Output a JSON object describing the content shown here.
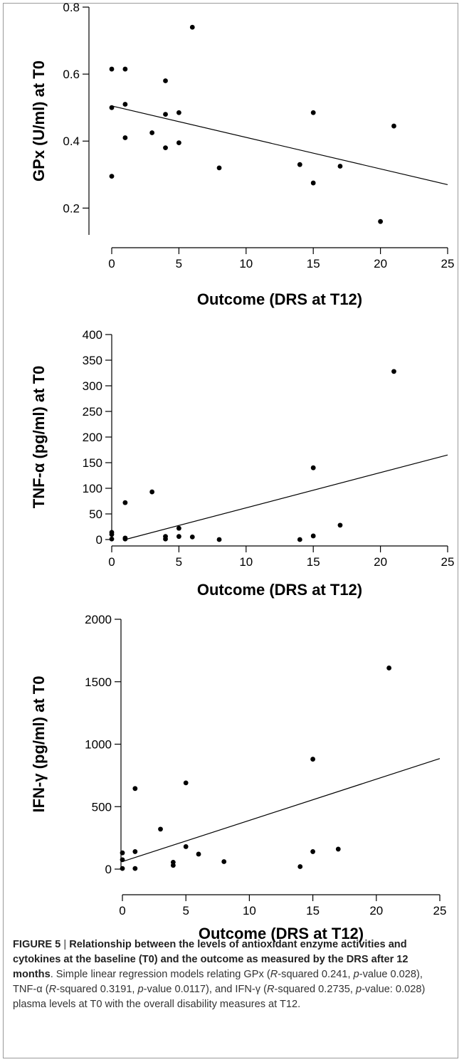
{
  "chart_data": [
    {
      "type": "scatter",
      "xlabel": "Outcome (DRS at T12)",
      "ylabel": "GPx (U/ml) at T0",
      "xlim": [
        0,
        25
      ],
      "ylim": [
        0.12,
        0.8
      ],
      "xticks": [
        0,
        5,
        10,
        15,
        20,
        25
      ],
      "yticks": [
        0.2,
        0.4,
        0.6,
        0.8
      ],
      "ytick_labels": [
        "0.2",
        "0.4",
        "0.6",
        "0.8"
      ],
      "points": [
        {
          "x": 0,
          "y": 0.615
        },
        {
          "x": 0,
          "y": 0.5
        },
        {
          "x": 0,
          "y": 0.295
        },
        {
          "x": 1,
          "y": 0.615
        },
        {
          "x": 1,
          "y": 0.51
        },
        {
          "x": 1,
          "y": 0.41
        },
        {
          "x": 3,
          "y": 0.425
        },
        {
          "x": 4,
          "y": 0.58
        },
        {
          "x": 4,
          "y": 0.48
        },
        {
          "x": 4,
          "y": 0.38
        },
        {
          "x": 5,
          "y": 0.485
        },
        {
          "x": 5,
          "y": 0.395
        },
        {
          "x": 6,
          "y": 0.74
        },
        {
          "x": 8,
          "y": 0.32
        },
        {
          "x": 14,
          "y": 0.33
        },
        {
          "x": 15,
          "y": 0.485
        },
        {
          "x": 15,
          "y": 0.275
        },
        {
          "x": 17,
          "y": 0.325
        },
        {
          "x": 20,
          "y": 0.16
        },
        {
          "x": 21,
          "y": 0.445
        }
      ],
      "regression": {
        "x": [
          0,
          25
        ],
        "y": [
          0.505,
          0.27
        ]
      }
    },
    {
      "type": "scatter",
      "xlabel": "Outcome (DRS at T12)",
      "ylabel": "TNF-α (pg/ml) at T0",
      "xlim": [
        0,
        25
      ],
      "ylim": [
        0,
        400
      ],
      "xticks": [
        0,
        5,
        10,
        15,
        20,
        25
      ],
      "yticks": [
        0,
        50,
        100,
        150,
        200,
        250,
        300,
        350,
        400
      ],
      "ytick_labels": [
        "0",
        "50",
        "100",
        "150",
        "200",
        "250",
        "300",
        "350",
        "400"
      ],
      "points": [
        {
          "x": 0,
          "y": 14
        },
        {
          "x": 0,
          "y": 10
        },
        {
          "x": 0,
          "y": 1
        },
        {
          "x": 1,
          "y": 72
        },
        {
          "x": 1,
          "y": 3
        },
        {
          "x": 1,
          "y": 1
        },
        {
          "x": 3,
          "y": 93
        },
        {
          "x": 4,
          "y": 6
        },
        {
          "x": 4,
          "y": 1
        },
        {
          "x": 5,
          "y": 22
        },
        {
          "x": 5,
          "y": 6
        },
        {
          "x": 6,
          "y": 5
        },
        {
          "x": 8,
          "y": 0
        },
        {
          "x": 14,
          "y": 0
        },
        {
          "x": 15,
          "y": 140
        },
        {
          "x": 15,
          "y": 7
        },
        {
          "x": 17,
          "y": 28
        },
        {
          "x": 21,
          "y": 328
        }
      ],
      "regression": {
        "x": [
          1,
          25
        ],
        "y": [
          0,
          165
        ]
      }
    },
    {
      "type": "scatter",
      "xlabel": "Outcome (DRS at T12)",
      "ylabel": "IFN-γ (pg/ml) at T0",
      "xlim": [
        0,
        25
      ],
      "ylim": [
        0,
        2000
      ],
      "xticks": [
        0,
        5,
        10,
        15,
        20,
        25
      ],
      "yticks": [
        0,
        500,
        1000,
        1500,
        2000
      ],
      "ytick_labels": [
        "0",
        "500",
        "1000",
        "1500",
        "2000"
      ],
      "points": [
        {
          "x": 0,
          "y": 130
        },
        {
          "x": 0,
          "y": 75
        },
        {
          "x": 0,
          "y": 5
        },
        {
          "x": 1,
          "y": 645
        },
        {
          "x": 1,
          "y": 140
        },
        {
          "x": 1,
          "y": 5
        },
        {
          "x": 3,
          "y": 320
        },
        {
          "x": 4,
          "y": 55
        },
        {
          "x": 4,
          "y": 30
        },
        {
          "x": 5,
          "y": 690
        },
        {
          "x": 5,
          "y": 180
        },
        {
          "x": 6,
          "y": 120
        },
        {
          "x": 8,
          "y": 60
        },
        {
          "x": 14,
          "y": 20
        },
        {
          "x": 15,
          "y": 880
        },
        {
          "x": 15,
          "y": 140
        },
        {
          "x": 17,
          "y": 160
        },
        {
          "x": 21,
          "y": 1610
        }
      ],
      "regression": {
        "x": [
          0,
          25
        ],
        "y": [
          60,
          885
        ]
      }
    }
  ],
  "caption": {
    "figure_label": "FIGURE 5",
    "separator": " | ",
    "title": "Relationship between the levels of antioxidant enzyme activities and cytokines at the baseline (T0) and the outcome as measured by the DRS after 12 months",
    "t1": ". Simple linear regression models relating GPx (",
    "r": "R",
    "t2": "-squared 0.241, ",
    "p": "p",
    "t3": "-value 0.028), TNF-α (",
    "t4": "-squared 0.3191, ",
    "t5": "-value 0.0117), and IFN-γ (",
    "t6": "-squared 0.2735, ",
    "t7": "-value: 0.028) plasma levels at T0 with the overall disability measures at T12."
  }
}
